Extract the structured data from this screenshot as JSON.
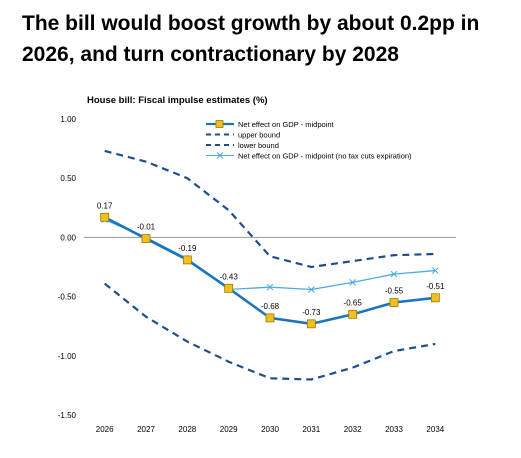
{
  "headline": "The bill would boost growth by about 0.2pp in 2026, and turn contractionary by 2028",
  "chart_data": {
    "type": "line",
    "title": "House bill: Fiscal impulse estimates (%)",
    "categories": [
      "2026",
      "2027",
      "2028",
      "2029",
      "2030",
      "2031",
      "2032",
      "2033",
      "2034"
    ],
    "y_ticks": [
      "1.00",
      "0.50",
      "0.00",
      "-0.50",
      "-1.00",
      "-1.50"
    ],
    "ylim": [
      -1.5,
      1.0
    ],
    "grid": false,
    "legend_position": "top",
    "series": [
      {
        "name": "Net effect on GDP - midpoint",
        "values": [
          0.17,
          -0.01,
          -0.19,
          -0.43,
          -0.68,
          -0.73,
          -0.65,
          -0.55,
          -0.51
        ],
        "labels": [
          "0.17",
          "-0.01",
          "-0.19",
          "-0.43",
          "-0.68",
          "-0.73",
          "-0.65",
          "-0.55",
          "-0.51"
        ],
        "color": "#1a75bc",
        "style": "solid-square-markers"
      },
      {
        "name": "upper bound",
        "values": [
          0.73,
          0.64,
          0.5,
          0.23,
          -0.16,
          -0.25,
          -0.2,
          -0.15,
          -0.14
        ],
        "color": "#1f4e8c",
        "style": "dashed"
      },
      {
        "name": "lower bound",
        "values": [
          -0.39,
          -0.67,
          -0.88,
          -1.05,
          -1.19,
          -1.2,
          -1.1,
          -0.96,
          -0.9
        ],
        "color": "#1f4e8c",
        "style": "dashed"
      },
      {
        "name": "Net effect on GDP - midpoint (no tax cuts expiration)",
        "values": [
          0.15,
          0.0,
          -0.18,
          -0.44,
          -0.42,
          -0.44,
          -0.38,
          -0.31,
          -0.28
        ],
        "color": "#4aa9e6",
        "style": "solid-x-markers"
      }
    ]
  }
}
